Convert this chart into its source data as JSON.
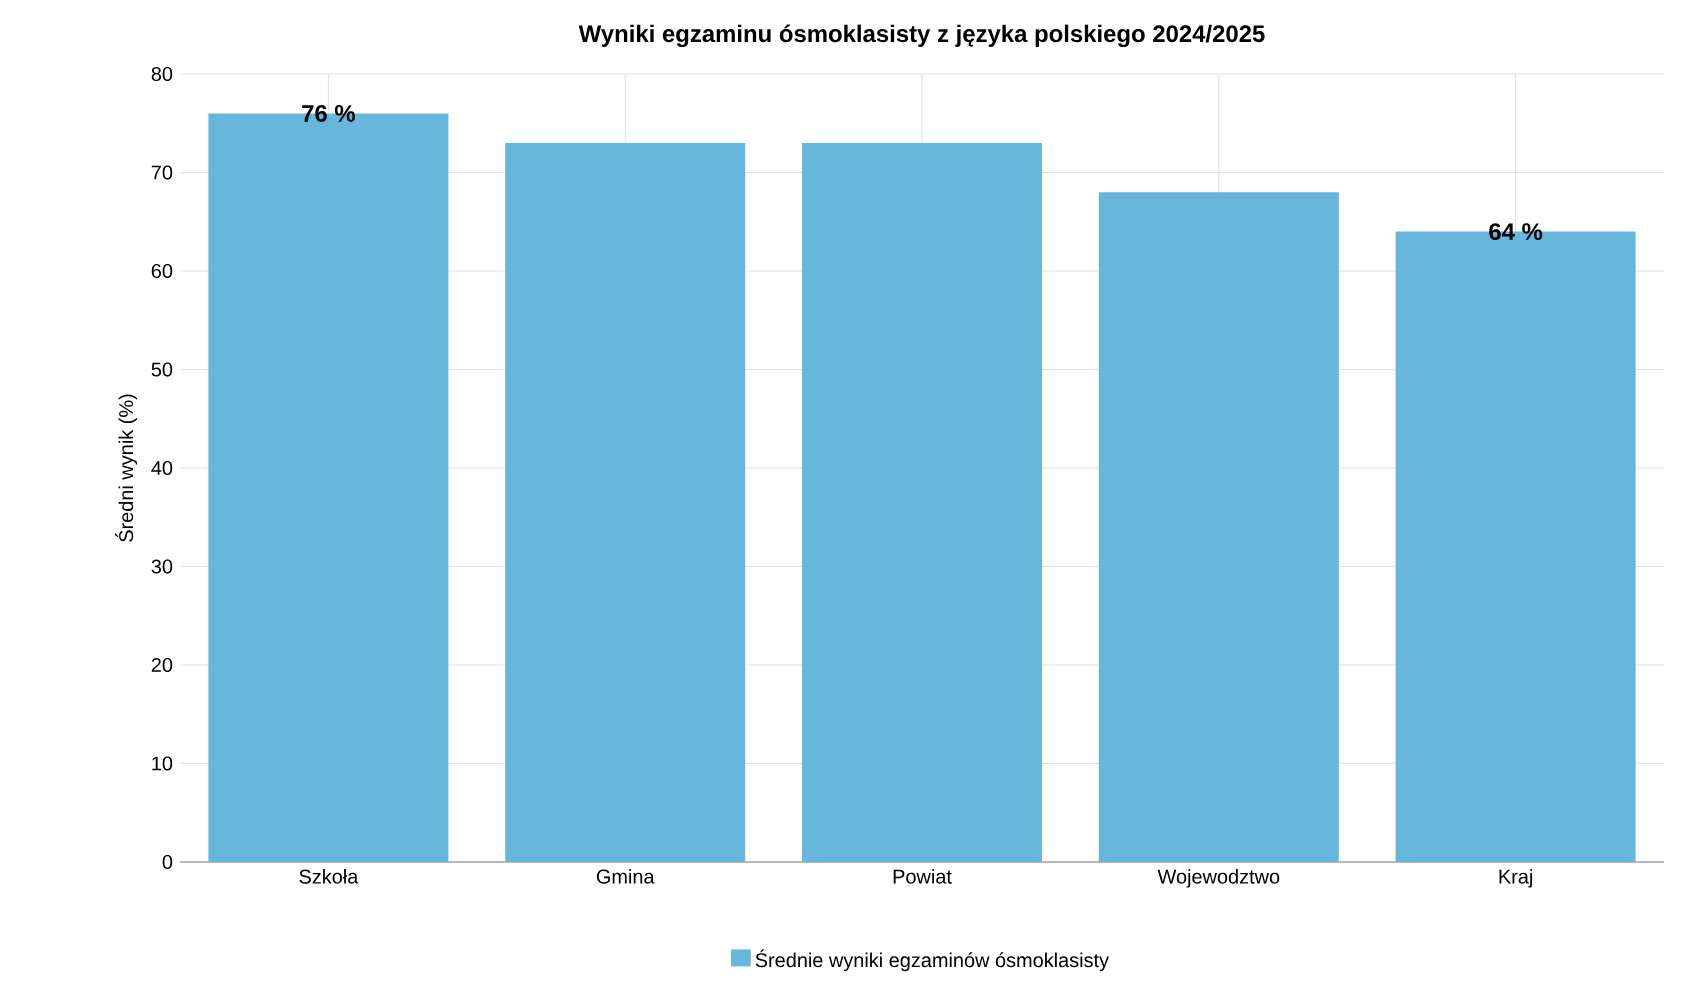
{
  "chart_data": {
    "type": "bar",
    "title": "Wyniki egzaminu ósmoklasisty z języka polskiego 2024/2025",
    "ylabel": "Średni wynik (%)",
    "categories": [
      "Szkoła",
      "Gmina",
      "Powiat",
      "Wojewodztwo",
      "Kraj"
    ],
    "series": [
      {
        "name": "Średnie wyniki egzaminów ósmoklasisty",
        "color": "#67b7dc",
        "values": [
          76,
          73,
          73,
          68,
          64
        ],
        "value_labels": [
          "76 %",
          null,
          null,
          null,
          "64 %"
        ]
      }
    ],
    "ylim": [
      0,
      80
    ],
    "yticks": [
      0,
      10,
      20,
      30,
      40,
      50,
      60,
      70,
      80
    ],
    "grid": true,
    "legend": "bottom"
  }
}
